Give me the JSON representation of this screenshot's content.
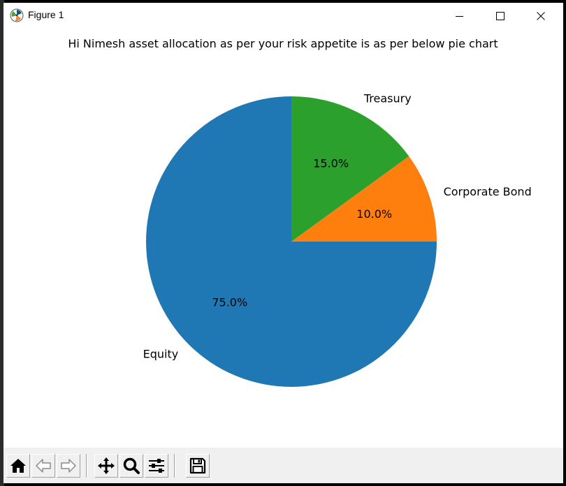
{
  "window": {
    "title": "Figure 1",
    "controls": [
      "minimize",
      "maximize",
      "close"
    ]
  },
  "toolbar": {
    "buttons": [
      {
        "name": "home",
        "icon": "home-icon"
      },
      {
        "name": "back",
        "icon": "back-arrow-icon"
      },
      {
        "name": "forward",
        "icon": "forward-arrow-icon"
      },
      {
        "name": "pan",
        "icon": "pan-icon"
      },
      {
        "name": "zoom",
        "icon": "magnifier-icon"
      },
      {
        "name": "configure-subplots",
        "icon": "sliders-icon"
      },
      {
        "name": "save",
        "icon": "floppy-disk-icon"
      }
    ]
  },
  "chart_data": {
    "type": "pie",
    "title": "Hi Nimesh asset allocation as per your risk appetite is as per below pie chart",
    "labels": [
      "Equity",
      "Corporate Bond",
      "Treasury"
    ],
    "values": [
      75.0,
      10.0,
      15.0
    ],
    "autopct": [
      "75.0%",
      "10.0%",
      "15.0%"
    ],
    "colors": [
      "#1f77b4",
      "#ff7f0e",
      "#2ca02c"
    ],
    "start_angle_deg": 90,
    "direction": "counterclockwise"
  }
}
